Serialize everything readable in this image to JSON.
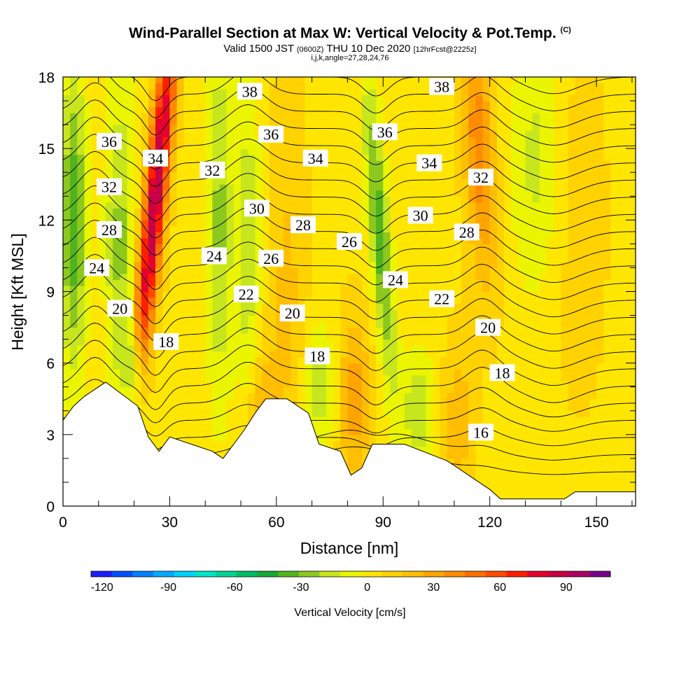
{
  "header": {
    "title": "Wind-Parallel Section at Max W: Vertical Velocity & Pot.Temp.",
    "title_mark": "(C)",
    "valid_prefix": "Valid 1500 JST",
    "valid_utc": "(0600Z)",
    "valid_date": "THU 10 Dec 2020",
    "forecast": "[12hrFcst@2225z]",
    "grid_info": "i,j,k,angle=27,28,24,76"
  },
  "chart_data": {
    "type": "heatmap",
    "xlabel": "Distance [nm]",
    "ylabel": "Height [Kft MSL]",
    "xlim": [
      0,
      161
    ],
    "ylim": [
      0,
      18
    ],
    "xticks": [
      "0",
      "30",
      "60",
      "90",
      "120",
      "150"
    ],
    "yticks": [
      "0",
      "3",
      "6",
      "9",
      "12",
      "15",
      "18"
    ],
    "colorbar": {
      "label": "Vertical Velocity [cm/s]",
      "range": [
        -125,
        110
      ],
      "step": 10,
      "tick_labels": [
        "-120",
        "-90",
        "-60",
        "-30",
        "0",
        "30",
        "60",
        "90"
      ],
      "tick_values": [
        -120,
        -90,
        -60,
        -30,
        0,
        30,
        60,
        90
      ],
      "colors": [
        "#1e1eff",
        "#0050ff",
        "#0082ff",
        "#00aaff",
        "#00d2ff",
        "#00e6c8",
        "#00d296",
        "#00be64",
        "#14aa32",
        "#50b41e",
        "#8cc81e",
        "#c8e61e",
        "#ebf500",
        "#ffe600",
        "#ffd200",
        "#ffbe00",
        "#ffa500",
        "#ff8c00",
        "#ff6e00",
        "#ff4b00",
        "#ff1e00",
        "#e6002d",
        "#c80046",
        "#aa0064",
        "#78008c"
      ]
    },
    "terrain_kft": [
      [
        0,
        3.6
      ],
      [
        3,
        4.2
      ],
      [
        6,
        4.6
      ],
      [
        9,
        4.9
      ],
      [
        12,
        5.2
      ],
      [
        21,
        4.2
      ],
      [
        24,
        2.9
      ],
      [
        27,
        2.3
      ],
      [
        30,
        2.9
      ],
      [
        42,
        2.3
      ],
      [
        45,
        2.0
      ],
      [
        48,
        2.6
      ],
      [
        51,
        3.2
      ],
      [
        54,
        3.9
      ],
      [
        57,
        4.5
      ],
      [
        63,
        4.5
      ],
      [
        66,
        4.2
      ],
      [
        69,
        3.9
      ],
      [
        72,
        2.6
      ],
      [
        78,
        2.3
      ],
      [
        81,
        1.3
      ],
      [
        84,
        1.6
      ],
      [
        87,
        2.6
      ],
      [
        96,
        2.6
      ],
      [
        108,
        1.9
      ],
      [
        111,
        1.6
      ],
      [
        114,
        1.3
      ],
      [
        117,
        1.0
      ],
      [
        120,
        0.7
      ],
      [
        123,
        0.3
      ],
      [
        141,
        0.3
      ],
      [
        144,
        0.6
      ],
      [
        161,
        0.6
      ]
    ],
    "velocity_field": [
      {
        "x": 3,
        "h": 12.0,
        "w": -45,
        "sx": 2.5,
        "sh": 4.5
      },
      {
        "x": 16,
        "h": 11.0,
        "w": -30,
        "sx": 3.0,
        "sh": 5.0
      },
      {
        "x": 20,
        "h": 5.5,
        "w": -45,
        "sx": 2.0,
        "sh": 1.5
      },
      {
        "x": 26,
        "h": 13.0,
        "w": 95,
        "sx": 2.2,
        "sh": 6.0,
        "tilt": 4
      },
      {
        "x": 44,
        "h": 12.0,
        "w": -30,
        "sx": 2.5,
        "sh": 5.5
      },
      {
        "x": 52,
        "h": 11.0,
        "w": -25,
        "sx": 2.5,
        "sh": 5.0
      },
      {
        "x": 56,
        "h": 3.5,
        "w": 25,
        "sx": 3.0,
        "sh": 2.0
      },
      {
        "x": 63,
        "h": 9.0,
        "w": 15,
        "sx": 4.0,
        "sh": 6.0
      },
      {
        "x": 72,
        "h": 5.0,
        "w": -25,
        "sx": 3.0,
        "sh": 1.8
      },
      {
        "x": 82,
        "h": 4.5,
        "w": 30,
        "sx": 3.0,
        "sh": 2.5
      },
      {
        "x": 89,
        "h": 11.5,
        "w": -45,
        "sx": 2.0,
        "sh": 4.5,
        "tilt": -3
      },
      {
        "x": 100,
        "h": 4.0,
        "w": -25,
        "sx": 3.5,
        "sh": 1.8
      },
      {
        "x": 111,
        "h": 3.5,
        "w": 20,
        "sx": 3.0,
        "sh": 2.5
      },
      {
        "x": 117,
        "h": 15.0,
        "w": 40,
        "sx": 3.0,
        "sh": 4.0,
        "tilt": -2
      },
      {
        "x": 133,
        "h": 14.5,
        "w": -20,
        "sx": 5.0,
        "sh": 4.0
      },
      {
        "x": 145,
        "h": 12.0,
        "w": 8,
        "sx": 6.0,
        "sh": 6.0
      }
    ],
    "isentropes_theta": [
      16,
      17,
      18,
      19,
      20,
      21,
      22,
      23,
      24,
      25,
      26,
      27,
      28,
      29,
      30,
      31,
      32,
      33,
      34,
      35,
      36,
      37,
      38,
      39
    ],
    "isentrope_labels": [
      {
        "text": "38",
        "x": 52.5,
        "h": 17.4
      },
      {
        "text": "38",
        "x": 106.5,
        "h": 17.6
      },
      {
        "text": "36",
        "x": 13,
        "h": 15.3
      },
      {
        "text": "36",
        "x": 58.5,
        "h": 15.6
      },
      {
        "text": "36",
        "x": 90.5,
        "h": 15.7
      },
      {
        "text": "34",
        "x": 26,
        "h": 14.6
      },
      {
        "text": "34",
        "x": 71,
        "h": 14.6
      },
      {
        "text": "34",
        "x": 103,
        "h": 14.4
      },
      {
        "text": "32",
        "x": 13,
        "h": 13.4
      },
      {
        "text": "32",
        "x": 42,
        "h": 14.1
      },
      {
        "text": "32",
        "x": 117.5,
        "h": 13.8
      },
      {
        "text": "30",
        "x": 54.5,
        "h": 12.5
      },
      {
        "text": "30",
        "x": 100.5,
        "h": 12.2
      },
      {
        "text": "28",
        "x": 13,
        "h": 11.6
      },
      {
        "text": "28",
        "x": 67.5,
        "h": 11.8
      },
      {
        "text": "28",
        "x": 113.5,
        "h": 11.5
      },
      {
        "text": "26",
        "x": 80.5,
        "h": 11.1
      },
      {
        "text": "26",
        "x": 58.5,
        "h": 10.4
      },
      {
        "text": "24",
        "x": 42.5,
        "h": 10.5
      },
      {
        "text": "24",
        "x": 9.5,
        "h": 10.0
      },
      {
        "text": "24",
        "x": 93.5,
        "h": 9.5
      },
      {
        "text": "22",
        "x": 51.5,
        "h": 8.9
      },
      {
        "text": "22",
        "x": 106.5,
        "h": 8.7
      },
      {
        "text": "20",
        "x": 16,
        "h": 8.3
      },
      {
        "text": "20",
        "x": 64.5,
        "h": 8.1
      },
      {
        "text": "20",
        "x": 119.5,
        "h": 7.5
      },
      {
        "text": "18",
        "x": 29,
        "h": 6.9
      },
      {
        "text": "18",
        "x": 71.5,
        "h": 6.3
      },
      {
        "text": "18",
        "x": 123.5,
        "h": 5.6
      },
      {
        "text": "16",
        "x": 117.5,
        "h": 3.1
      }
    ]
  }
}
